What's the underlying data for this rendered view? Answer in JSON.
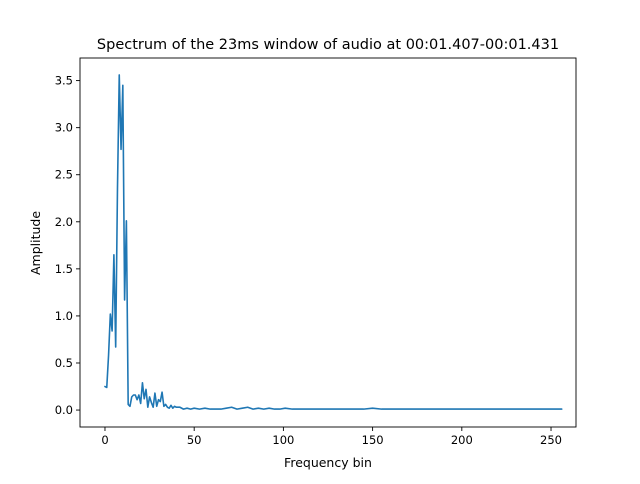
{
  "chart_data": {
    "type": "line",
    "title": "Spectrum of the 23ms window of audio at 00:01.407-00:01.431",
    "xlabel": "Frequency bin",
    "ylabel": "Amplitude",
    "xlim": [
      -14,
      264
    ],
    "ylim": [
      -0.18,
      3.74
    ],
    "x_ticks": [
      0,
      50,
      100,
      150,
      200,
      250
    ],
    "x_tick_labels": [
      "0",
      "50",
      "100",
      "150",
      "200",
      "250"
    ],
    "y_ticks": [
      0.0,
      0.5,
      1.0,
      1.5,
      2.0,
      2.5,
      3.0,
      3.5
    ],
    "y_tick_labels": [
      "0.0",
      "0.5",
      "1.0",
      "1.5",
      "2.0",
      "2.5",
      "3.0",
      "3.5"
    ],
    "grid": false,
    "series": [
      {
        "color": "#1f77b4",
        "x": [
          0,
          1,
          2,
          3,
          4,
          5,
          6,
          7,
          8,
          9,
          10,
          11,
          12,
          13,
          14,
          15,
          16,
          17,
          18,
          19,
          20,
          21,
          22,
          23,
          24,
          25,
          26,
          27,
          28,
          29,
          30,
          31,
          32,
          33,
          34,
          35,
          36,
          37,
          38,
          39,
          40,
          42,
          44,
          46,
          48,
          50,
          53,
          56,
          59,
          62,
          65,
          68,
          71,
          74,
          77,
          80,
          83,
          86,
          89,
          92,
          95,
          98,
          101,
          105,
          110,
          115,
          120,
          125,
          130,
          135,
          140,
          145,
          150,
          155,
          160,
          165,
          170,
          175,
          180,
          185,
          190,
          195,
          200,
          205,
          210,
          215,
          220,
          225,
          230,
          235,
          240,
          245,
          250,
          256
        ],
        "values": [
          0.25,
          0.24,
          0.58,
          1.02,
          0.84,
          1.65,
          0.67,
          2.35,
          3.56,
          2.77,
          3.45,
          1.17,
          2.01,
          0.06,
          0.04,
          0.14,
          0.16,
          0.16,
          0.11,
          0.16,
          0.07,
          0.29,
          0.12,
          0.22,
          0.03,
          0.14,
          0.08,
          0.03,
          0.18,
          0.04,
          0.11,
          0.09,
          0.19,
          0.04,
          0.06,
          0.03,
          0.02,
          0.05,
          0.02,
          0.04,
          0.03,
          0.03,
          0.01,
          0.02,
          0.01,
          0.02,
          0.01,
          0.02,
          0.01,
          0.01,
          0.01,
          0.02,
          0.03,
          0.01,
          0.02,
          0.03,
          0.01,
          0.02,
          0.01,
          0.02,
          0.01,
          0.01,
          0.02,
          0.01,
          0.01,
          0.01,
          0.01,
          0.01,
          0.01,
          0.01,
          0.01,
          0.01,
          0.02,
          0.01,
          0.01,
          0.01,
          0.01,
          0.01,
          0.01,
          0.01,
          0.01,
          0.01,
          0.01,
          0.01,
          0.01,
          0.01,
          0.01,
          0.01,
          0.01,
          0.01,
          0.01,
          0.01,
          0.01,
          0.01
        ]
      }
    ]
  }
}
